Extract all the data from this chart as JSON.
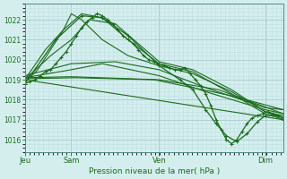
{
  "title": "Pression niveau de la mer( hPa )",
  "bg_color": "#d4eeee",
  "grid_color_major": "#aacccc",
  "grid_color_minor": "#c0dede",
  "line_color": "#1a6b1a",
  "ylim": [
    1015.4,
    1022.8
  ],
  "yticks": [
    1016,
    1017,
    1018,
    1019,
    1020,
    1021,
    1022
  ],
  "xtick_labels": [
    "Jeu",
    "Sam",
    "Ven",
    "Dim"
  ],
  "xtick_positions": [
    0.0,
    0.18,
    0.52,
    0.93
  ],
  "lines": [
    {
      "x": [
        0.0,
        0.02,
        0.04,
        0.06,
        0.08,
        0.1,
        0.12,
        0.14,
        0.16,
        0.18,
        0.2,
        0.22,
        0.24,
        0.26,
        0.28,
        0.3,
        0.32,
        0.34,
        0.36,
        0.38,
        0.4,
        0.42,
        0.44,
        0.46,
        0.48,
        0.5,
        0.52,
        0.54,
        0.56,
        0.58,
        0.6,
        0.62,
        0.64,
        0.66,
        0.68,
        0.7,
        0.72,
        0.74,
        0.76,
        0.78,
        0.8,
        0.82,
        0.84,
        0.86,
        0.88,
        0.9,
        0.92,
        0.94,
        0.96,
        0.98,
        1.0
      ],
      "y": [
        1018.8,
        1018.9,
        1019.0,
        1019.2,
        1019.4,
        1019.5,
        1019.8,
        1020.1,
        1020.4,
        1020.8,
        1021.2,
        1021.6,
        1021.9,
        1022.1,
        1022.3,
        1022.2,
        1022.0,
        1021.8,
        1021.5,
        1021.2,
        1021.0,
        1020.8,
        1020.5,
        1020.2,
        1020.0,
        1019.9,
        1019.8,
        1019.7,
        1019.6,
        1019.5,
        1019.5,
        1019.6,
        1019.3,
        1019.0,
        1018.7,
        1018.3,
        1017.7,
        1017.0,
        1016.5,
        1016.0,
        1015.8,
        1016.0,
        1016.4,
        1016.8,
        1017.1,
        1017.2,
        1017.3,
        1017.4,
        1017.3,
        1017.2,
        1017.1
      ],
      "marker": "+",
      "lw": 0.9
    },
    {
      "x": [
        0.0,
        1.0
      ],
      "y": [
        1019.0,
        1017.0
      ],
      "marker": null,
      "lw": 0.8
    },
    {
      "x": [
        0.0,
        0.18,
        0.52,
        0.75,
        1.0
      ],
      "y": [
        1019.1,
        1019.15,
        1019.0,
        1018.5,
        1017.3
      ],
      "marker": null,
      "lw": 0.8
    },
    {
      "x": [
        0.0,
        0.2,
        0.5,
        0.8,
        1.0
      ],
      "y": [
        1019.05,
        1019.1,
        1019.0,
        1018.2,
        1017.5
      ],
      "marker": null,
      "lw": 0.8
    },
    {
      "x": [
        0.0,
        0.1,
        0.18,
        0.25,
        0.35,
        0.52,
        0.65,
        0.8,
        0.93,
        1.0
      ],
      "y": [
        1019.0,
        1020.2,
        1021.0,
        1022.0,
        1021.8,
        1019.9,
        1019.5,
        1018.5,
        1017.4,
        1017.2
      ],
      "marker": null,
      "lw": 0.8
    },
    {
      "x": [
        0.0,
        0.08,
        0.15,
        0.22,
        0.3,
        0.4,
        0.52,
        0.65,
        0.8,
        0.93,
        1.0
      ],
      "y": [
        1019.0,
        1020.5,
        1021.5,
        1022.3,
        1022.1,
        1021.0,
        1019.8,
        1019.4,
        1018.3,
        1017.3,
        1017.1
      ],
      "marker": null,
      "lw": 0.8
    },
    {
      "x": [
        0.0,
        0.18,
        0.35,
        0.52,
        0.7,
        0.93,
        1.0
      ],
      "y": [
        1019.2,
        1019.8,
        1019.9,
        1019.5,
        1018.6,
        1017.6,
        1017.5
      ],
      "marker": null,
      "lw": 0.8
    },
    {
      "x": [
        0.0,
        0.12,
        0.22,
        0.3,
        0.4,
        0.52,
        0.6,
        0.65,
        0.7,
        0.74,
        0.78,
        0.82,
        0.86,
        0.9,
        0.93,
        0.96,
        1.0
      ],
      "y": [
        1018.8,
        1021.0,
        1022.2,
        1022.1,
        1021.2,
        1019.7,
        1019.0,
        1018.5,
        1017.5,
        1016.8,
        1016.2,
        1015.9,
        1016.3,
        1016.9,
        1017.2,
        1017.2,
        1017.0
      ],
      "marker": "+",
      "lw": 0.9
    },
    {
      "x": [
        0.0,
        0.05,
        0.1,
        0.15,
        0.18,
        0.22,
        0.3,
        0.4,
        0.52,
        0.65,
        0.8,
        0.93,
        1.0
      ],
      "y": [
        1018.85,
        1019.5,
        1020.5,
        1021.5,
        1022.3,
        1022.0,
        1021.0,
        1020.2,
        1019.7,
        1019.3,
        1018.4,
        1017.4,
        1017.1
      ],
      "marker": null,
      "lw": 0.8
    },
    {
      "x": [
        0.0,
        0.18,
        0.3,
        0.52,
        0.7,
        0.93,
        1.0
      ],
      "y": [
        1019.1,
        1019.5,
        1019.8,
        1019.2,
        1018.4,
        1017.5,
        1017.3
      ],
      "marker": null,
      "lw": 0.8
    }
  ]
}
